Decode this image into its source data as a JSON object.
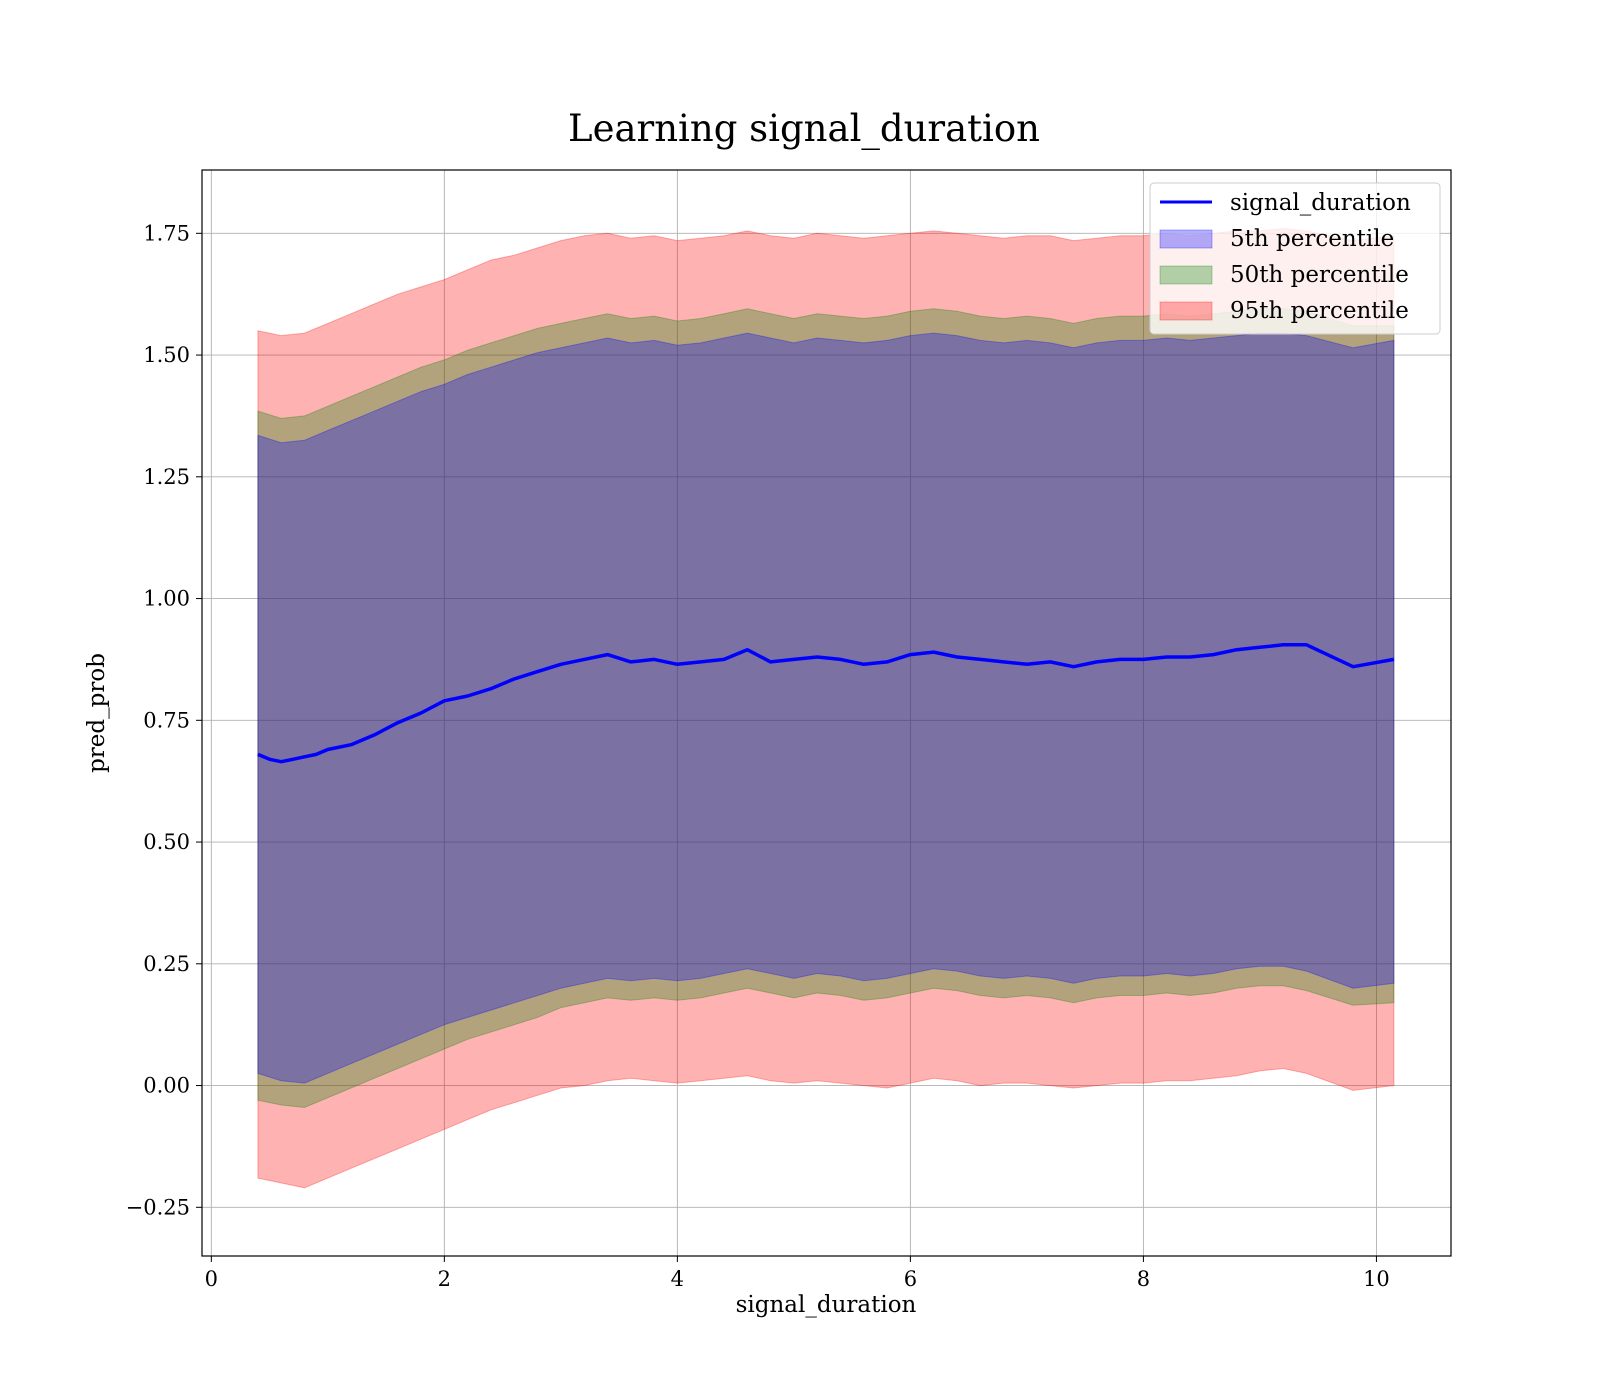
{
  "chart_data": {
    "type": "line",
    "title": "Learning signal_duration",
    "xlabel": "signal_duration",
    "ylabel": "pred_prob",
    "xlim": [
      -0.08,
      10.64
    ],
    "ylim": [
      -0.35,
      1.88
    ],
    "x_ticks": [
      0,
      2,
      4,
      6,
      8,
      10
    ],
    "x_tick_labels": [
      "0",
      "2",
      "4",
      "6",
      "8",
      "10"
    ],
    "y_ticks": [
      -0.25,
      0,
      0.25,
      0.5,
      0.75,
      1.0,
      1.25,
      1.5,
      1.75
    ],
    "y_tick_labels": [
      "−0.25",
      "0.00",
      "0.25",
      "0.50",
      "0.75",
      "1.00",
      "1.25",
      "1.50",
      "1.75"
    ],
    "grid": true,
    "legend_position": "top-right",
    "legend": [
      {
        "label": "signal_duration",
        "kind": "line",
        "color": "#0000ff"
      },
      {
        "label": "5th percentile",
        "kind": "patch",
        "color": "#0000ff"
      },
      {
        "label": "50th percentile",
        "kind": "patch",
        "color": "#008000"
      },
      {
        "label": "95th percentile",
        "kind": "patch",
        "color": "#ff0000"
      }
    ],
    "mean_line": {
      "name": "signal_duration",
      "color": "#0000ff",
      "x": [
        0.4,
        0.5,
        0.6,
        0.7,
        0.8,
        0.9,
        1.0,
        1.2,
        1.4,
        1.6,
        1.8,
        2.0,
        2.2,
        2.4,
        2.6,
        2.8,
        3.0,
        3.2,
        3.4,
        3.6,
        3.8,
        4.0,
        4.2,
        4.4,
        4.6,
        4.8,
        5.0,
        5.2,
        5.4,
        5.6,
        5.8,
        6.0,
        6.2,
        6.4,
        6.6,
        6.8,
        7.0,
        7.2,
        7.4,
        7.6,
        7.8,
        8.0,
        8.2,
        8.4,
        8.6,
        8.8,
        9.0,
        9.2,
        9.4,
        9.8,
        10.15
      ],
      "y": [
        0.68,
        0.67,
        0.665,
        0.67,
        0.675,
        0.68,
        0.69,
        0.7,
        0.72,
        0.745,
        0.765,
        0.79,
        0.8,
        0.815,
        0.835,
        0.85,
        0.865,
        0.875,
        0.885,
        0.87,
        0.875,
        0.865,
        0.87,
        0.875,
        0.895,
        0.87,
        0.875,
        0.88,
        0.875,
        0.865,
        0.87,
        0.885,
        0.89,
        0.88,
        0.875,
        0.87,
        0.865,
        0.87,
        0.86,
        0.87,
        0.875,
        0.875,
        0.88,
        0.88,
        0.885,
        0.895,
        0.9,
        0.905,
        0.905,
        0.86,
        0.875
      ]
    },
    "bands": [
      {
        "name": "95th percentile",
        "color": "#ff0000",
        "x": [
          0.4,
          0.6,
          0.8,
          1.0,
          1.2,
          1.4,
          1.6,
          1.8,
          2.0,
          2.2,
          2.4,
          2.6,
          2.8,
          3.0,
          3.2,
          3.4,
          3.6,
          3.8,
          4.0,
          4.2,
          4.4,
          4.6,
          4.8,
          5.0,
          5.2,
          5.4,
          5.6,
          5.8,
          6.0,
          6.2,
          6.4,
          6.6,
          6.8,
          7.0,
          7.2,
          7.4,
          7.6,
          7.8,
          8.0,
          8.2,
          8.4,
          8.6,
          8.8,
          9.0,
          9.2,
          9.4,
          9.8,
          10.15
        ],
        "upper": [
          1.55,
          1.54,
          1.545,
          1.565,
          1.585,
          1.605,
          1.625,
          1.64,
          1.655,
          1.675,
          1.695,
          1.705,
          1.72,
          1.735,
          1.745,
          1.75,
          1.74,
          1.745,
          1.735,
          1.74,
          1.745,
          1.755,
          1.745,
          1.74,
          1.75,
          1.745,
          1.74,
          1.745,
          1.75,
          1.755,
          1.75,
          1.745,
          1.74,
          1.745,
          1.745,
          1.735,
          1.74,
          1.745,
          1.745,
          1.75,
          1.745,
          1.75,
          1.755,
          1.755,
          1.76,
          1.755,
          1.735,
          1.745
        ],
        "lower": [
          -0.19,
          -0.2,
          -0.21,
          -0.19,
          -0.17,
          -0.15,
          -0.13,
          -0.11,
          -0.09,
          -0.07,
          -0.05,
          -0.035,
          -0.02,
          -0.005,
          0.0,
          0.01,
          0.015,
          0.01,
          0.005,
          0.01,
          0.015,
          0.02,
          0.01,
          0.005,
          0.01,
          0.005,
          0.0,
          -0.005,
          0.005,
          0.015,
          0.01,
          0.0,
          0.005,
          0.005,
          0.0,
          -0.005,
          0.0,
          0.005,
          0.005,
          0.01,
          0.01,
          0.015,
          0.02,
          0.03,
          0.035,
          0.025,
          -0.01,
          0.0
        ]
      },
      {
        "name": "50th percentile",
        "color": "#008000",
        "x": [
          0.4,
          0.6,
          0.8,
          1.0,
          1.2,
          1.4,
          1.6,
          1.8,
          2.0,
          2.2,
          2.4,
          2.6,
          2.8,
          3.0,
          3.2,
          3.4,
          3.6,
          3.8,
          4.0,
          4.2,
          4.4,
          4.6,
          4.8,
          5.0,
          5.2,
          5.4,
          5.6,
          5.8,
          6.0,
          6.2,
          6.4,
          6.6,
          6.8,
          7.0,
          7.2,
          7.4,
          7.6,
          7.8,
          8.0,
          8.2,
          8.4,
          8.6,
          8.8,
          9.0,
          9.2,
          9.4,
          9.8,
          10.15
        ],
        "upper": [
          1.385,
          1.37,
          1.375,
          1.395,
          1.415,
          1.435,
          1.455,
          1.475,
          1.49,
          1.51,
          1.525,
          1.54,
          1.555,
          1.565,
          1.575,
          1.585,
          1.575,
          1.58,
          1.57,
          1.575,
          1.585,
          1.595,
          1.585,
          1.575,
          1.585,
          1.58,
          1.575,
          1.58,
          1.59,
          1.595,
          1.59,
          1.58,
          1.575,
          1.58,
          1.575,
          1.565,
          1.575,
          1.58,
          1.58,
          1.585,
          1.58,
          1.585,
          1.59,
          1.595,
          1.595,
          1.59,
          1.56,
          1.56
        ],
        "lower": [
          -0.03,
          -0.04,
          -0.045,
          -0.025,
          -0.005,
          0.015,
          0.035,
          0.055,
          0.075,
          0.095,
          0.11,
          0.125,
          0.14,
          0.16,
          0.17,
          0.18,
          0.175,
          0.18,
          0.175,
          0.18,
          0.19,
          0.2,
          0.19,
          0.18,
          0.19,
          0.185,
          0.175,
          0.18,
          0.19,
          0.2,
          0.195,
          0.185,
          0.18,
          0.185,
          0.18,
          0.17,
          0.18,
          0.185,
          0.185,
          0.19,
          0.185,
          0.19,
          0.2,
          0.205,
          0.205,
          0.195,
          0.165,
          0.17
        ]
      },
      {
        "name": "5th percentile",
        "color": "#0000ff",
        "x": [
          0.4,
          0.6,
          0.8,
          1.0,
          1.2,
          1.4,
          1.6,
          1.8,
          2.0,
          2.2,
          2.4,
          2.6,
          2.8,
          3.0,
          3.2,
          3.4,
          3.6,
          3.8,
          4.0,
          4.2,
          4.4,
          4.6,
          4.8,
          5.0,
          5.2,
          5.4,
          5.6,
          5.8,
          6.0,
          6.2,
          6.4,
          6.6,
          6.8,
          7.0,
          7.2,
          7.4,
          7.6,
          7.8,
          8.0,
          8.2,
          8.4,
          8.6,
          8.8,
          9.0,
          9.2,
          9.4,
          9.8,
          10.15
        ],
        "upper": [
          1.335,
          1.32,
          1.325,
          1.345,
          1.365,
          1.385,
          1.405,
          1.425,
          1.44,
          1.46,
          1.475,
          1.49,
          1.505,
          1.515,
          1.525,
          1.535,
          1.525,
          1.53,
          1.52,
          1.525,
          1.535,
          1.545,
          1.535,
          1.525,
          1.535,
          1.53,
          1.525,
          1.53,
          1.54,
          1.545,
          1.54,
          1.53,
          1.525,
          1.53,
          1.525,
          1.515,
          1.525,
          1.53,
          1.53,
          1.535,
          1.53,
          1.535,
          1.54,
          1.545,
          1.545,
          1.54,
          1.515,
          1.53
        ],
        "lower": [
          0.025,
          0.01,
          0.005,
          0.025,
          0.045,
          0.065,
          0.085,
          0.105,
          0.125,
          0.14,
          0.155,
          0.17,
          0.185,
          0.2,
          0.21,
          0.22,
          0.215,
          0.22,
          0.215,
          0.22,
          0.23,
          0.24,
          0.23,
          0.22,
          0.23,
          0.225,
          0.215,
          0.22,
          0.23,
          0.24,
          0.235,
          0.225,
          0.22,
          0.225,
          0.22,
          0.21,
          0.22,
          0.225,
          0.225,
          0.23,
          0.225,
          0.23,
          0.24,
          0.245,
          0.245,
          0.235,
          0.2,
          0.21
        ]
      }
    ]
  }
}
